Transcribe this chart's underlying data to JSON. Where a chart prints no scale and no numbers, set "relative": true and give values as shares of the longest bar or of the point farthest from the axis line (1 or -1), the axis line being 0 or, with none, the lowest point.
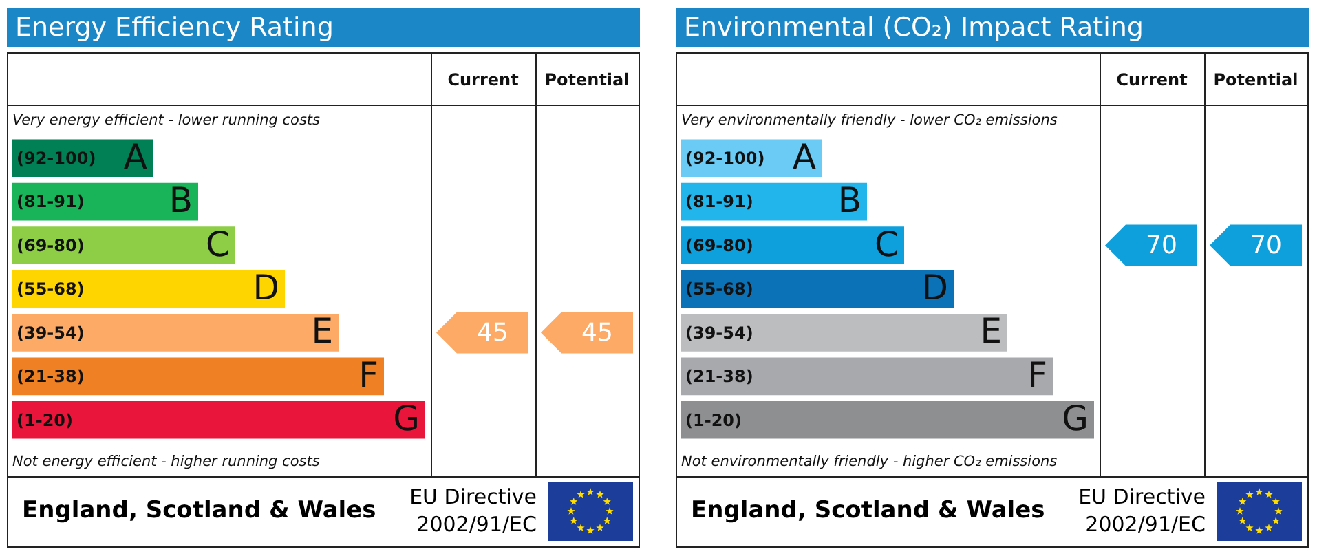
{
  "chart_data": [
    {
      "type": "bar",
      "orientation": "horizontal",
      "relative": true,
      "title": "Energy Efficiency Rating",
      "categories": [
        "A",
        "B",
        "C",
        "D",
        "E",
        "F",
        "G"
      ],
      "values": [
        0.34,
        0.45,
        0.54,
        0.66,
        0.79,
        0.9,
        1
      ],
      "colors": [
        "#008054",
        "#19b459",
        "#8dce46",
        "#ffd500",
        "#fcaa65",
        "#ef8023",
        "#e9153b"
      ],
      "annotations": [
        "Very energy efficient - lower running costs",
        "Not energy efficient - higher running costs",
        "Current",
        "Potential",
        "England, Scotland & Wales",
        "EU Directive 2002/91/EC",
        "(92-100)",
        "(81-91)",
        "(69-80)",
        "(55-68)",
        "(39-54)",
        "(21-38)",
        "(1-20)",
        "45",
        "45"
      ]
    },
    {
      "type": "bar",
      "orientation": "horizontal",
      "relative": true,
      "title": "Environmental (CO₂) Impact Rating",
      "categories": [
        "A",
        "B",
        "C",
        "D",
        "E",
        "F",
        "G"
      ],
      "values": [
        0.34,
        0.45,
        0.54,
        0.66,
        0.79,
        0.9,
        1
      ],
      "colors": [
        "#6ccbf4",
        "#22b5eb",
        "#0ea0dc",
        "#0b72b8",
        "#bbbdbf",
        "#a7a9ac",
        "#8e8f91"
      ],
      "annotations": [
        "Very environmentally friendly - lower CO₂ emissions",
        "Not environmentally friendly - higher CO₂ emissions",
        "Current",
        "Potential",
        "England, Scotland & Wales",
        "EU Directive 2002/91/EC",
        "(92-100)",
        "(81-91)",
        "(69-80)",
        "(55-68)",
        "(39-54)",
        "(21-38)",
        "(1-20)",
        "70",
        "70"
      ]
    }
  ]
}
